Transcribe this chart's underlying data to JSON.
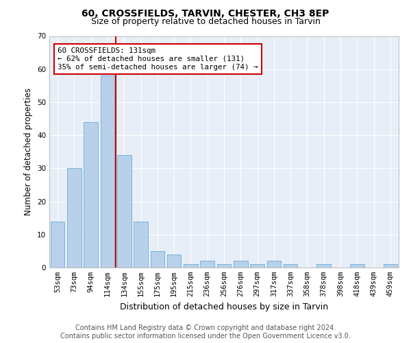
{
  "title1": "60, CROSSFIELDS, TARVIN, CHESTER, CH3 8EP",
  "title2": "Size of property relative to detached houses in Tarvin",
  "xlabel": "Distribution of detached houses by size in Tarvin",
  "ylabel": "Number of detached properties",
  "categories": [
    "53sqm",
    "73sqm",
    "94sqm",
    "114sqm",
    "134sqm",
    "155sqm",
    "175sqm",
    "195sqm",
    "215sqm",
    "236sqm",
    "256sqm",
    "276sqm",
    "297sqm",
    "317sqm",
    "337sqm",
    "358sqm",
    "378sqm",
    "398sqm",
    "418sqm",
    "439sqm",
    "459sqm"
  ],
  "values": [
    14,
    30,
    44,
    58,
    34,
    14,
    5,
    4,
    1,
    2,
    1,
    2,
    1,
    2,
    1,
    0,
    1,
    0,
    1,
    0,
    1
  ],
  "bar_color": "#b8d0ea",
  "bar_edge_color": "#6aaed6",
  "highlight_label": "60 CROSSFIELDS: 131sqm",
  "highlight_line1": "← 62% of detached houses are smaller (131)",
  "highlight_line2": "35% of semi-detached houses are larger (74) →",
  "annotation_box_color": "#cc0000",
  "ylim": [
    0,
    70
  ],
  "yticks": [
    0,
    10,
    20,
    30,
    40,
    50,
    60,
    70
  ],
  "footer1": "Contains HM Land Registry data © Crown copyright and database right 2024.",
  "footer2": "Contains public sector information licensed under the Open Government Licence v3.0.",
  "bg_color": "#e8eef7",
  "grid_color": "#ffffff",
  "title1_fontsize": 10,
  "title2_fontsize": 9,
  "axis_label_fontsize": 8.5,
  "tick_fontsize": 7.5,
  "footer_fontsize": 7,
  "line_x_index": 3.5
}
